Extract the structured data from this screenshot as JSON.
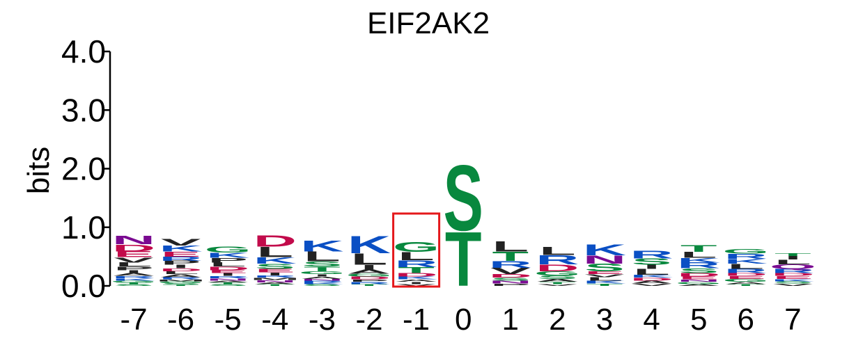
{
  "chart_data": {
    "type": "sequence-logo",
    "title": "EIF2AK2",
    "ylabel": "bits",
    "ylim": [
      0,
      4
    ],
    "yticks": [
      "0.0",
      "1.0",
      "2.0",
      "3.0",
      "4.0"
    ],
    "positions": [
      "-7",
      "-6",
      "-5",
      "-4",
      "-3",
      "-2",
      "-1",
      "0",
      "1",
      "2",
      "3",
      "4",
      "5",
      "6",
      "7"
    ],
    "highlight_position": "-1",
    "highlight_color": "#e4181b",
    "colors": {
      "hydrophobic": "#222222",
      "polar": "#08883e",
      "basic": "#0a4fc4",
      "acidic": "#c20b4b",
      "amide": "#7a0a91"
    },
    "stacks": [
      {
        "position": "-7",
        "letters": [
          [
            "S",
            0.03
          ],
          [
            "T",
            0.03
          ],
          [
            "G",
            0.03
          ],
          [
            "K",
            0.04
          ],
          [
            "R",
            0.04
          ],
          [
            "A",
            0.05
          ],
          [
            "I",
            0.05
          ],
          [
            "P",
            0.06
          ],
          [
            "L",
            0.07
          ],
          [
            "V",
            0.09
          ],
          [
            "E",
            0.1
          ],
          [
            "D",
            0.12
          ],
          [
            "N",
            0.15
          ]
        ]
      },
      {
        "position": "-6",
        "letters": [
          [
            "T",
            0.02
          ],
          [
            "S",
            0.03
          ],
          [
            "G",
            0.03
          ],
          [
            "M",
            0.03
          ],
          [
            "R",
            0.04
          ],
          [
            "A",
            0.05
          ],
          [
            "L",
            0.05
          ],
          [
            "D",
            0.05
          ],
          [
            "I",
            0.06
          ],
          [
            "P",
            0.07
          ],
          [
            "R",
            0.07
          ],
          [
            "E",
            0.09
          ],
          [
            "K",
            0.1
          ],
          [
            "V",
            0.12
          ]
        ]
      },
      {
        "position": "-5",
        "letters": [
          [
            "S",
            0.03
          ],
          [
            "T",
            0.03
          ],
          [
            "A",
            0.03
          ],
          [
            "N",
            0.04
          ],
          [
            "R",
            0.04
          ],
          [
            "I",
            0.05
          ],
          [
            "E",
            0.05
          ],
          [
            "D",
            0.06
          ],
          [
            "L",
            0.07
          ],
          [
            "P",
            0.08
          ],
          [
            "K",
            0.09
          ],
          [
            "G",
            0.1
          ]
        ]
      },
      {
        "position": "-4",
        "letters": [
          [
            "T",
            0.03
          ],
          [
            "A",
            0.03
          ],
          [
            "N",
            0.04
          ],
          [
            "M",
            0.04
          ],
          [
            "R",
            0.04
          ],
          [
            "I",
            0.05
          ],
          [
            "E",
            0.06
          ],
          [
            "S",
            0.09
          ],
          [
            "K",
            0.11
          ],
          [
            "L",
            0.18
          ],
          [
            "D",
            0.2
          ]
        ]
      },
      {
        "position": "-3",
        "letters": [
          [
            "S",
            0.03
          ],
          [
            "K",
            0.03
          ],
          [
            "R",
            0.03
          ],
          [
            "N",
            0.03
          ],
          [
            "A",
            0.04
          ],
          [
            "I",
            0.04
          ],
          [
            "G",
            0.05
          ],
          [
            "T",
            0.08
          ],
          [
            "S",
            0.09
          ],
          [
            "L",
            0.17
          ],
          [
            "K",
            0.19
          ]
        ]
      },
      {
        "position": "-2",
        "letters": [
          [
            "T",
            0.03
          ],
          [
            "R",
            0.04
          ],
          [
            "P",
            0.04
          ],
          [
            "D",
            0.05
          ],
          [
            "G",
            0.05
          ],
          [
            "A",
            0.07
          ],
          [
            "I",
            0.08
          ],
          [
            "L",
            0.2
          ],
          [
            "K",
            0.3
          ]
        ]
      },
      {
        "position": "-1",
        "letters": [
          [
            "V",
            0.03
          ],
          [
            "I",
            0.04
          ],
          [
            "A",
            0.04
          ],
          [
            "K",
            0.05
          ],
          [
            "D",
            0.06
          ],
          [
            "T",
            0.1
          ],
          [
            "R",
            0.12
          ],
          [
            "L",
            0.14
          ],
          [
            "G",
            0.17
          ]
        ]
      },
      {
        "position": "0",
        "letters": [
          [
            "T",
            0.95
          ],
          [
            "S",
            1.15
          ]
        ]
      },
      {
        "position": "1",
        "letters": [
          [
            "P",
            0.04
          ],
          [
            "N",
            0.05
          ],
          [
            "S",
            0.05
          ],
          [
            "D",
            0.06
          ],
          [
            "V",
            0.11
          ],
          [
            "R",
            0.12
          ],
          [
            "T",
            0.16
          ],
          [
            "L",
            0.18
          ]
        ]
      },
      {
        "position": "2",
        "letters": [
          [
            "V",
            0.03
          ],
          [
            "T",
            0.04
          ],
          [
            "A",
            0.05
          ],
          [
            "S",
            0.06
          ],
          [
            "G",
            0.07
          ],
          [
            "D",
            0.12
          ],
          [
            "R",
            0.16
          ],
          [
            "L",
            0.14
          ]
        ]
      },
      {
        "position": "3",
        "letters": [
          [
            "T",
            0.04
          ],
          [
            "K",
            0.05
          ],
          [
            "L",
            0.06
          ],
          [
            "V",
            0.05
          ],
          [
            "E",
            0.05
          ],
          [
            "S",
            0.13
          ],
          [
            "N",
            0.14
          ],
          [
            "K",
            0.19
          ]
        ]
      },
      {
        "position": "4",
        "letters": [
          [
            "V",
            0.04
          ],
          [
            "A",
            0.05
          ],
          [
            "D",
            0.05
          ],
          [
            "K",
            0.05
          ],
          [
            "L",
            0.1
          ],
          [
            "I",
            0.07
          ],
          [
            "S",
            0.11
          ],
          [
            "R",
            0.13
          ]
        ]
      },
      {
        "position": "5",
        "letters": [
          [
            "A",
            0.03
          ],
          [
            "G",
            0.04
          ],
          [
            "N",
            0.04
          ],
          [
            "E",
            0.05
          ],
          [
            "D",
            0.06
          ],
          [
            "S",
            0.08
          ],
          [
            "R",
            0.1
          ],
          [
            "K",
            0.08
          ],
          [
            "L",
            0.1
          ],
          [
            "T",
            0.12
          ]
        ]
      },
      {
        "position": "6",
        "letters": [
          [
            "T",
            0.03
          ],
          [
            "A",
            0.04
          ],
          [
            "G",
            0.05
          ],
          [
            "E",
            0.05
          ],
          [
            "D",
            0.05
          ],
          [
            "R",
            0.07
          ],
          [
            "L",
            0.09
          ],
          [
            "K",
            0.08
          ],
          [
            "R",
            0.09
          ],
          [
            "G",
            0.08
          ]
        ]
      },
      {
        "position": "7",
        "letters": [
          [
            "V",
            0.04
          ],
          [
            "S",
            0.04
          ],
          [
            "K",
            0.04
          ],
          [
            "E",
            0.05
          ],
          [
            "D",
            0.05
          ],
          [
            "R",
            0.07
          ],
          [
            "Q",
            0.08
          ],
          [
            "L",
            0.08
          ],
          [
            "I",
            0.06
          ],
          [
            "T",
            0.05
          ]
        ]
      }
    ]
  }
}
